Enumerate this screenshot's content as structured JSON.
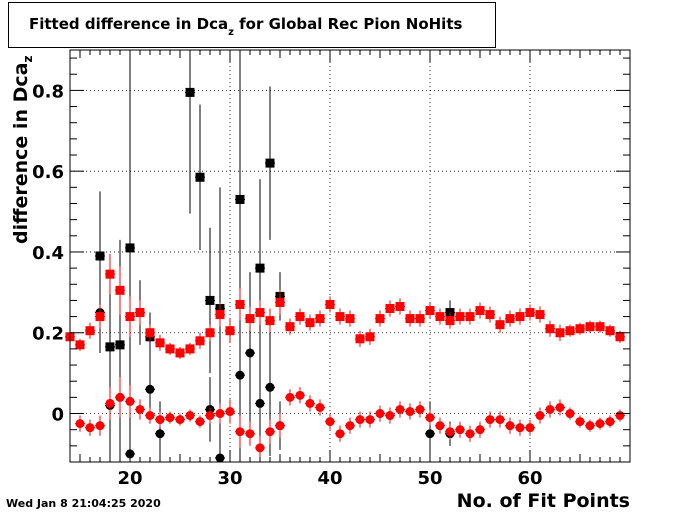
{
  "title": {
    "prefix": "Fitted difference in Dca",
    "subscript": "z",
    "suffix": " for Global Rec Pion NoHits"
  },
  "ylabel": {
    "prefix": "difference in Dca",
    "subscript": "z"
  },
  "xlabel": "No. of Fit Points",
  "datestamp": "Wed Jan  8 21:04:25 2020",
  "chart_data": {
    "type": "scatter",
    "xlim": [
      14,
      70
    ],
    "ylim": [
      -0.12,
      0.9
    ],
    "xticks": [
      20,
      30,
      40,
      50,
      60
    ],
    "yticks": [
      0,
      0.2,
      0.4,
      0.6,
      0.8
    ],
    "xtick_labels": [
      "20",
      "30",
      "40",
      "50",
      "60"
    ],
    "ytick_labels": [
      "0",
      "0.2",
      "0.4",
      "0.6",
      "0.8"
    ],
    "grid": true,
    "series": [
      {
        "color": "#000000",
        "marker": "square",
        "points": [
          [
            17,
            0.39,
            0.16
          ],
          [
            18,
            0.165,
            0.15
          ],
          [
            19,
            0.17,
            0.26
          ],
          [
            20,
            0.41,
            0.48
          ],
          [
            21,
            0.25,
            0.08
          ],
          [
            22,
            0.19,
            0.06
          ],
          [
            26,
            0.795,
            0.3
          ],
          [
            27,
            0.585,
            0.18
          ],
          [
            28,
            0.28,
            0.18
          ],
          [
            29,
            0.26,
            0.3
          ],
          [
            31,
            0.53,
            0.36
          ],
          [
            33,
            0.36,
            0.22
          ],
          [
            34,
            0.62,
            0.19
          ],
          [
            35,
            0.29,
            0.06
          ],
          [
            52,
            0.25,
            0.03
          ]
        ]
      },
      {
        "color": "#000000",
        "marker": "circle",
        "points": [
          [
            17,
            0.25,
            0.1
          ],
          [
            18,
            0.02,
            0.14
          ],
          [
            19,
            0.04,
            0.2
          ],
          [
            20,
            -0.1,
            0.3
          ],
          [
            22,
            0.06,
            0.07
          ],
          [
            23,
            -0.05,
            0.08
          ],
          [
            28,
            0.01,
            0.08
          ],
          [
            29,
            -0.11,
            0.14
          ],
          [
            31,
            0.095,
            0.3
          ],
          [
            32,
            0.15,
            0.2
          ],
          [
            33,
            0.025,
            0.14
          ],
          [
            34,
            0.065,
            0.17
          ],
          [
            35,
            -0.03,
            0.06
          ],
          [
            50,
            -0.05,
            0.08
          ],
          [
            52,
            -0.05,
            0.03
          ]
        ]
      },
      {
        "color": "#ff0000",
        "marker": "square",
        "points": [
          [
            14,
            0.19,
            0.015
          ],
          [
            15,
            0.17,
            0.015
          ],
          [
            16,
            0.205,
            0.02
          ],
          [
            17,
            0.24,
            0.03
          ],
          [
            18,
            0.345,
            0.05
          ],
          [
            19,
            0.305,
            0.06
          ],
          [
            20,
            0.24,
            0.05
          ],
          [
            21,
            0.25,
            0.03
          ],
          [
            22,
            0.2,
            0.02
          ],
          [
            23,
            0.175,
            0.02
          ],
          [
            24,
            0.16,
            0.015
          ],
          [
            25,
            0.15,
            0.015
          ],
          [
            26,
            0.16,
            0.015
          ],
          [
            27,
            0.18,
            0.02
          ],
          [
            28,
            0.2,
            0.02
          ],
          [
            29,
            0.245,
            0.03
          ],
          [
            30,
            0.205,
            0.03
          ],
          [
            31,
            0.27,
            0.04
          ],
          [
            32,
            0.235,
            0.03
          ],
          [
            33,
            0.25,
            0.03
          ],
          [
            34,
            0.23,
            0.03
          ],
          [
            35,
            0.275,
            0.03
          ],
          [
            36,
            0.215,
            0.02
          ],
          [
            37,
            0.24,
            0.02
          ],
          [
            38,
            0.225,
            0.02
          ],
          [
            39,
            0.235,
            0.02
          ],
          [
            40,
            0.27,
            0.02
          ],
          [
            41,
            0.24,
            0.02
          ],
          [
            42,
            0.235,
            0.02
          ],
          [
            43,
            0.185,
            0.02
          ],
          [
            44,
            0.19,
            0.02
          ],
          [
            45,
            0.235,
            0.02
          ],
          [
            46,
            0.26,
            0.02
          ],
          [
            47,
            0.265,
            0.02
          ],
          [
            48,
            0.235,
            0.02
          ],
          [
            49,
            0.235,
            0.02
          ],
          [
            50,
            0.255,
            0.02
          ],
          [
            51,
            0.24,
            0.02
          ],
          [
            52,
            0.23,
            0.02
          ],
          [
            53,
            0.24,
            0.02
          ],
          [
            54,
            0.24,
            0.02
          ],
          [
            55,
            0.255,
            0.02
          ],
          [
            56,
            0.245,
            0.02
          ],
          [
            57,
            0.22,
            0.02
          ],
          [
            58,
            0.235,
            0.02
          ],
          [
            59,
            0.24,
            0.02
          ],
          [
            60,
            0.25,
            0.02
          ],
          [
            61,
            0.245,
            0.02
          ],
          [
            62,
            0.21,
            0.02
          ],
          [
            63,
            0.2,
            0.02
          ],
          [
            64,
            0.205,
            0.015
          ],
          [
            65,
            0.21,
            0.015
          ],
          [
            66,
            0.215,
            0.015
          ],
          [
            67,
            0.215,
            0.015
          ],
          [
            68,
            0.205,
            0.015
          ],
          [
            69,
            0.19,
            0.015
          ]
        ]
      },
      {
        "color": "#ff0000",
        "marker": "circle",
        "points": [
          [
            15,
            -0.025,
            0.02
          ],
          [
            16,
            -0.035,
            0.02
          ],
          [
            17,
            -0.03,
            0.025
          ],
          [
            18,
            0.025,
            0.04
          ],
          [
            19,
            0.04,
            0.05
          ],
          [
            20,
            0.03,
            0.04
          ],
          [
            21,
            0.01,
            0.025
          ],
          [
            22,
            -0.005,
            0.02
          ],
          [
            23,
            -0.015,
            0.02
          ],
          [
            24,
            -0.01,
            0.015
          ],
          [
            25,
            -0.015,
            0.015
          ],
          [
            26,
            -0.005,
            0.015
          ],
          [
            27,
            -0.02,
            0.015
          ],
          [
            28,
            -0.005,
            0.02
          ],
          [
            29,
            0,
            0.025
          ],
          [
            30,
            0.005,
            0.03
          ],
          [
            31,
            -0.045,
            0.04
          ],
          [
            32,
            -0.05,
            0.03
          ],
          [
            33,
            -0.085,
            0.03
          ],
          [
            34,
            -0.045,
            0.03
          ],
          [
            35,
            -0.03,
            0.03
          ],
          [
            36,
            0.04,
            0.02
          ],
          [
            37,
            0.045,
            0.02
          ],
          [
            38,
            0.025,
            0.02
          ],
          [
            39,
            0.015,
            0.02
          ],
          [
            40,
            -0.02,
            0.02
          ],
          [
            41,
            -0.05,
            0.02
          ],
          [
            42,
            -0.03,
            0.02
          ],
          [
            43,
            -0.015,
            0.02
          ],
          [
            44,
            -0.015,
            0.02
          ],
          [
            45,
            0,
            0.02
          ],
          [
            46,
            -0.005,
            0.02
          ],
          [
            47,
            0.01,
            0.02
          ],
          [
            48,
            0.005,
            0.02
          ],
          [
            49,
            0.01,
            0.02
          ],
          [
            50,
            -0.01,
            0.02
          ],
          [
            51,
            -0.03,
            0.02
          ],
          [
            52,
            -0.045,
            0.02
          ],
          [
            53,
            -0.04,
            0.02
          ],
          [
            54,
            -0.05,
            0.02
          ],
          [
            55,
            -0.04,
            0.02
          ],
          [
            56,
            -0.015,
            0.02
          ],
          [
            57,
            -0.015,
            0.02
          ],
          [
            58,
            -0.03,
            0.02
          ],
          [
            59,
            -0.035,
            0.02
          ],
          [
            60,
            -0.035,
            0.02
          ],
          [
            61,
            -0.005,
            0.02
          ],
          [
            62,
            0.01,
            0.02
          ],
          [
            63,
            0.015,
            0.02
          ],
          [
            64,
            0,
            0.015
          ],
          [
            65,
            -0.02,
            0.015
          ],
          [
            66,
            -0.03,
            0.015
          ],
          [
            67,
            -0.025,
            0.015
          ],
          [
            68,
            -0.02,
            0.015
          ],
          [
            69,
            -0.005,
            0.015
          ]
        ]
      }
    ]
  }
}
